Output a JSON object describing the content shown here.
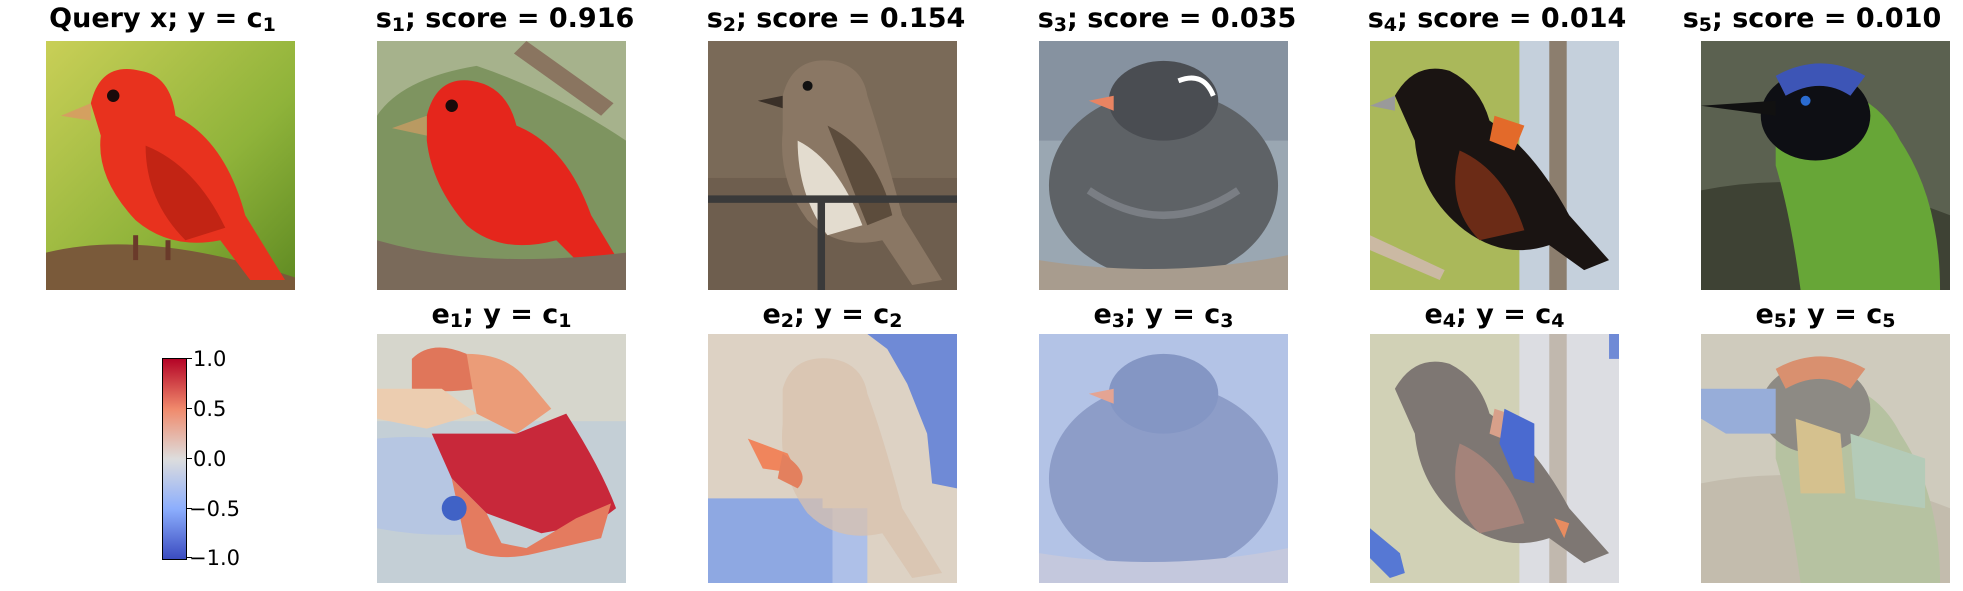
{
  "top_row": [
    {
      "title_main": "Query x; y = c",
      "title_sub": "1",
      "bird": "red tanager on a branch"
    },
    {
      "title_main_pre": "s",
      "title_sub_pre": "1",
      "title_rest": "; score = 0.916",
      "bird": "red tanager"
    },
    {
      "title_main_pre": "s",
      "title_sub_pre": "2",
      "title_rest": "; score = 0.154",
      "bird": "brown flycatcher on a perch"
    },
    {
      "title_main_pre": "s",
      "title_sub_pre": "3",
      "title_rest": "; score = 0.035",
      "bird": "grey bird with orange beak"
    },
    {
      "title_main_pre": "s",
      "title_sub_pre": "4",
      "title_rest": "; score = 0.014",
      "bird": "black and orange oriole"
    },
    {
      "title_main_pre": "s",
      "title_sub_pre": "5",
      "title_rest": "; score = 0.010",
      "bird": "green jay with blue head"
    }
  ],
  "bottom_row": [
    {
      "e": "e",
      "e_sub": "1",
      "mid": "; y = c",
      "c_sub": "1"
    },
    {
      "e": "e",
      "e_sub": "2",
      "mid": "; y = c",
      "c_sub": "2"
    },
    {
      "e": "e",
      "e_sub": "3",
      "mid": "; y = c",
      "c_sub": "3"
    },
    {
      "e": "e",
      "e_sub": "4",
      "mid": "; y = c",
      "c_sub": "4"
    },
    {
      "e": "e",
      "e_sub": "5",
      "mid": "; y = c",
      "c_sub": "5"
    }
  ],
  "colorbar": {
    "ticks": [
      "1.0",
      "0.5",
      "0.0",
      "−0.5",
      "−1.0"
    ],
    "colormap": "coolwarm",
    "high_color": "#b40426",
    "mid_color": "#dddddd",
    "low_color": "#3b4cc0"
  }
}
